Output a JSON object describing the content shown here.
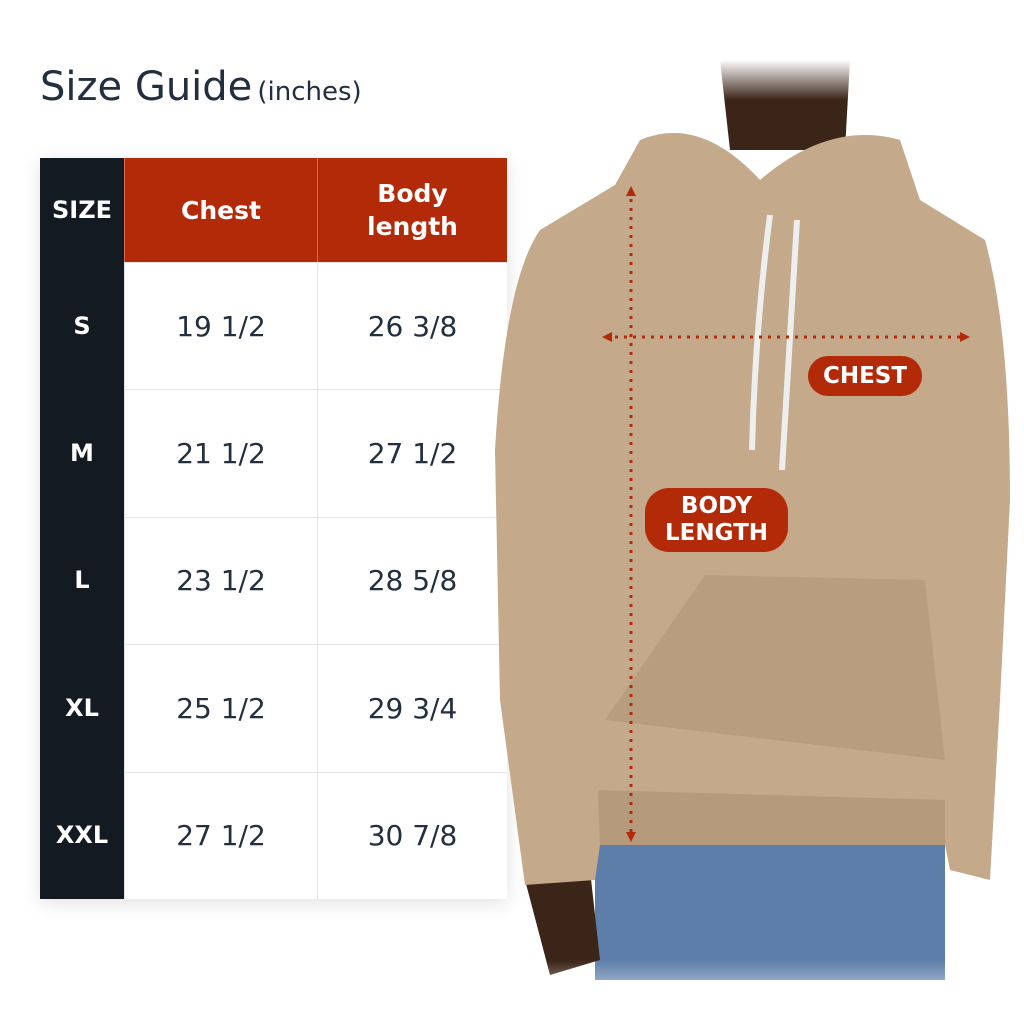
{
  "title": {
    "main": "Size Guide",
    "unit": "(inches)"
  },
  "table": {
    "headers": {
      "size": "SIZE",
      "chest": "Chest",
      "body_length": "Body length"
    },
    "rows": [
      {
        "size": "S",
        "chest": "19 1/2",
        "body_length": "26 3/8"
      },
      {
        "size": "M",
        "chest": "21 1/2",
        "body_length": "27 1/2"
      },
      {
        "size": "L",
        "chest": "23 1/2",
        "body_length": "28 5/8"
      },
      {
        "size": "XL",
        "chest": "25 1/2",
        "body_length": "29 3/4"
      },
      {
        "size": "XXL",
        "chest": "27 1/2",
        "body_length": "30 7/8"
      }
    ]
  },
  "image": {
    "labels": {
      "chest": "CHEST",
      "body_length": "BODY LENGTH"
    },
    "colors": {
      "accent": "#b32a08",
      "dark": "#131a22",
      "hoodie": "#c4a98a",
      "jeans": "#5d7ea8"
    }
  }
}
